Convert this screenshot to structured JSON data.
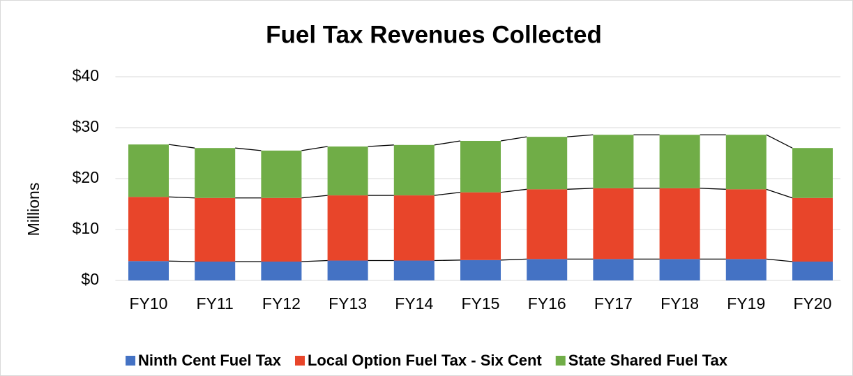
{
  "chart_data": {
    "type": "stacked_bar",
    "title": "Fuel Tax Revenues Collected",
    "y_label": "Millions",
    "categories": [
      "FY10",
      "FY11",
      "FY12",
      "FY13",
      "FY14",
      "FY15",
      "FY16",
      "FY17",
      "FY18",
      "FY19",
      "FY20"
    ],
    "series": [
      {
        "name": "Ninth Cent Fuel Tax",
        "color": "#4472c4",
        "values": [
          3.8,
          3.7,
          3.7,
          3.9,
          3.9,
          4.0,
          4.2,
          4.2,
          4.2,
          4.2,
          3.7
        ]
      },
      {
        "name": "Local Option Fuel Tax - Six Cent",
        "color": "#e8452a",
        "values": [
          12.6,
          12.5,
          12.5,
          12.8,
          12.8,
          13.3,
          13.7,
          13.9,
          13.9,
          13.7,
          12.5
        ]
      },
      {
        "name": "State Shared Fuel Tax",
        "color": "#70ad47",
        "values": [
          10.3,
          9.8,
          9.3,
          9.6,
          9.9,
          10.1,
          10.3,
          10.5,
          10.5,
          10.7,
          9.8
        ]
      }
    ],
    "ylim": [
      0,
      40
    ],
    "yticks": [
      {
        "value": 0,
        "label": "$0"
      },
      {
        "value": 10,
        "label": "$10"
      },
      {
        "value": 20,
        "label": "$20"
      },
      {
        "value": 30,
        "label": "$30"
      },
      {
        "value": 40,
        "label": "$40"
      }
    ],
    "grid": true,
    "series_lines": true,
    "legend": "bottom"
  }
}
